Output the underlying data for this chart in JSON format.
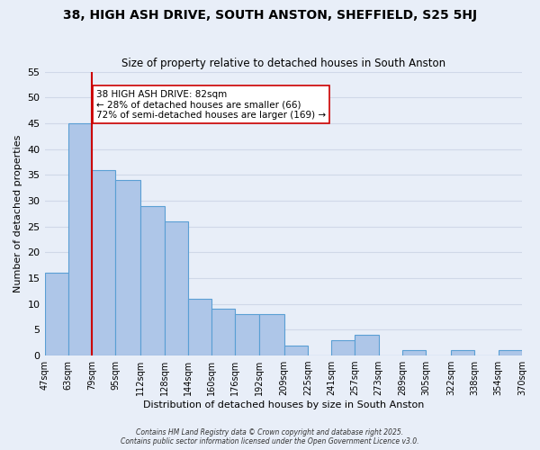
{
  "title": "38, HIGH ASH DRIVE, SOUTH ANSTON, SHEFFIELD, S25 5HJ",
  "subtitle": "Size of property relative to detached houses in South Anston",
  "xlabel": "Distribution of detached houses by size in South Anston",
  "ylabel": "Number of detached properties",
  "bin_labels": [
    "47sqm",
    "63sqm",
    "79sqm",
    "95sqm",
    "112sqm",
    "128sqm",
    "144sqm",
    "160sqm",
    "176sqm",
    "192sqm",
    "209sqm",
    "225sqm",
    "241sqm",
    "257sqm",
    "273sqm",
    "289sqm",
    "305sqm",
    "322sqm",
    "338sqm",
    "354sqm",
    "370sqm"
  ],
  "bin_edges": [
    47,
    63,
    79,
    95,
    112,
    128,
    144,
    160,
    176,
    192,
    209,
    225,
    241,
    257,
    273,
    289,
    305,
    322,
    338,
    354,
    370
  ],
  "bar_heights": [
    16,
    45,
    36,
    34,
    29,
    26,
    11,
    9,
    8,
    8,
    2,
    0,
    3,
    4,
    0,
    1,
    0,
    1,
    0,
    1
  ],
  "bar_color": "#aec6e8",
  "bar_edge_color": "#5a9fd4",
  "property_size": 82,
  "property_line_x": 79,
  "vline_color": "#cc0000",
  "annotation_text": "38 HIGH ASH DRIVE: 82sqm\n← 28% of detached houses are smaller (66)\n72% of semi-detached houses are larger (169) →",
  "annotation_box_color": "#ffffff",
  "annotation_box_edge": "#cc0000",
  "ylim": [
    0,
    55
  ],
  "yticks": [
    0,
    5,
    10,
    15,
    20,
    25,
    30,
    35,
    40,
    45,
    50,
    55
  ],
  "grid_color": "#d0d8e8",
  "bg_color": "#e8eef8",
  "footer_line1": "Contains HM Land Registry data © Crown copyright and database right 2025.",
  "footer_line2": "Contains public sector information licensed under the Open Government Licence v3.0."
}
